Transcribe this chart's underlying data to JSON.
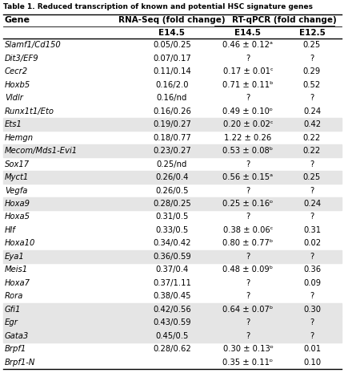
{
  "title": "Table 1. Reduced transcription of known and potential HSC signature genes",
  "rows": [
    [
      "Slamf1/Cd150",
      "0.05/0.25",
      "0.46 ± 0.12ᵃ",
      "0.25"
    ],
    [
      "Dit3/EF9",
      "0.07/0.17",
      "?",
      "?"
    ],
    [
      "Cecr2",
      "0.11/0.14",
      "0.17 ± 0.01ᶜ",
      "0.29"
    ],
    [
      "Hoxb5",
      "0.16/2.0",
      "0.71 ± 0.11ᵇ",
      "0.52"
    ],
    [
      "Vldlr",
      "0.16/nd",
      "?",
      "?"
    ],
    [
      "Runx1t1/Eto",
      "0.16/0.26",
      "0.49 ± 0.10ᶛ",
      "0.24"
    ],
    [
      "Ets1",
      "0.19/0.27",
      "0.20 ± 0.02ᶜ",
      "0.42"
    ],
    [
      "Hemgn",
      "0.18/0.77",
      "1.22 ± 0.26",
      "0.22"
    ],
    [
      "Mecom/Mds1-Evi1",
      "0.23/0.27",
      "0.53 ± 0.08ᵇ",
      "0.22"
    ],
    [
      "Sox17",
      "0.25/nd",
      "?",
      "?"
    ],
    [
      "Myct1",
      "0.26/0.4",
      "0.56 ± 0.15ᵃ",
      "0.25"
    ],
    [
      "Vegfa",
      "0.26/0.5",
      "?",
      "?"
    ],
    [
      "Hoxa9",
      "0.28/0.25",
      "0.25 ± 0.16ᶛ",
      "0.24"
    ],
    [
      "Hoxa5",
      "0.31/0.5",
      "?",
      "?"
    ],
    [
      "Hlf",
      "0.33/0.5",
      "0.38 ± 0.06ᶜ",
      "0.31"
    ],
    [
      "Hoxa10",
      "0.34/0.42",
      "0.80 ± 0.77ᵇ",
      "0.02"
    ],
    [
      "Eya1",
      "0.36/0.59",
      "?",
      "?"
    ],
    [
      "Meis1",
      "0.37/0.4",
      "0.48 ± 0.09ᵇ",
      "0.36"
    ],
    [
      "Hoxa7",
      "0.37/1.11",
      "?",
      "0.09"
    ],
    [
      "Rora",
      "0.38/0.45",
      "?",
      "?"
    ],
    [
      "Gfi1",
      "0.42/0.56",
      "0.64 ± 0.07ᵇ",
      "0.30"
    ],
    [
      "Egr",
      "0.43/0.59",
      "?",
      "?"
    ],
    [
      "Gata3",
      "0.45/0.5",
      "?",
      "?"
    ],
    [
      "Brpf1",
      "0.28/0.62",
      "0.30 ± 0.13ᶛ",
      "0.01"
    ],
    [
      "Brpf1-N",
      "",
      "0.35 ± 0.11ᶛ",
      "0.10"
    ]
  ],
  "shaded_rows": [
    6,
    8,
    10,
    12,
    16,
    20,
    21,
    22
  ],
  "bg_color": "#ffffff",
  "shade_color": "#e5e5e5",
  "font_size": 7.2,
  "header_font_size": 8.0
}
